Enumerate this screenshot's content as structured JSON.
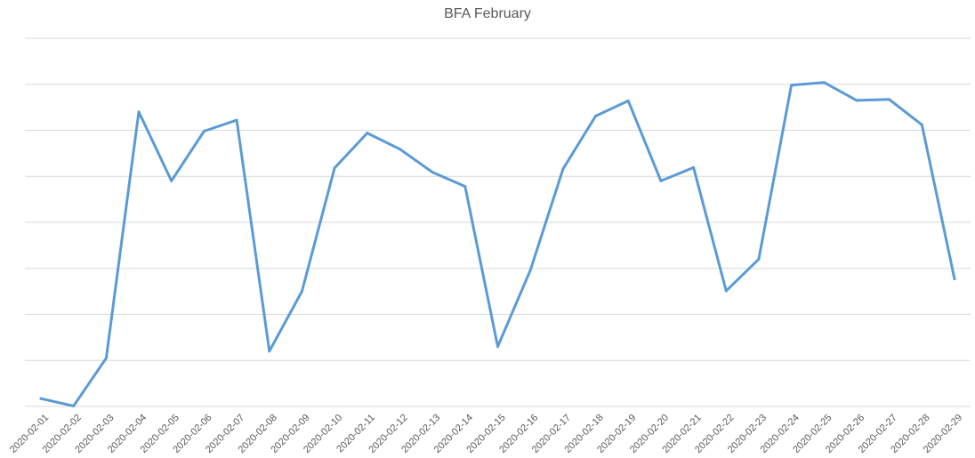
{
  "chart_data": {
    "type": "line",
    "title": "BFA February",
    "xlabel": "",
    "ylabel": "",
    "grid": true,
    "legend": "none",
    "y_axis_labels_shown": false,
    "ylim": [
      0,
      8
    ],
    "series_color": "#5b9bd5",
    "categories": [
      "2020-02-01",
      "2020-02-02",
      "2020-02-03",
      "2020-02-04",
      "2020-02-05",
      "2020-02-06",
      "2020-02-07",
      "2020-02-08",
      "2020-02-09",
      "2020-02-10",
      "2020-02-11",
      "2020-02-12",
      "2020-02-13",
      "2020-02-14",
      "2020-02-15",
      "2020-02-16",
      "2020-02-17",
      "2020-02-18",
      "2020-02-19",
      "2020-02-20",
      "2020-02-21",
      "2020-02-22",
      "2020-02-23",
      "2020-02-24",
      "2020-02-25",
      "2020-02-26",
      "2020-02-27",
      "2020-02-28",
      "2020-02-29"
    ],
    "series": [
      {
        "values": [
          0.17,
          0.01,
          1.05,
          6.4,
          4.9,
          5.98,
          6.22,
          1.2,
          2.5,
          5.18,
          5.94,
          5.59,
          5.09,
          4.78,
          1.3,
          2.96,
          5.16,
          6.31,
          6.64,
          4.9,
          5.19,
          2.51,
          3.2,
          6.98,
          7.04,
          6.65,
          6.67,
          6.12,
          2.77
        ]
      }
    ]
  }
}
